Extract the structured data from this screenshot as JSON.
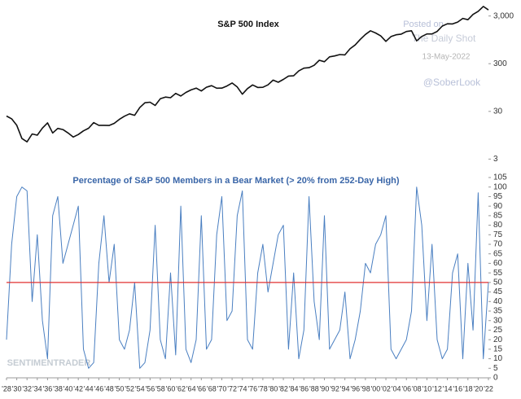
{
  "chart_data": [
    {
      "type": "line",
      "title": "S&P 500 Index",
      "log_scale": true,
      "x": [
        1928,
        1929,
        1930,
        1931,
        1932,
        1933,
        1934,
        1935,
        1936,
        1937,
        1938,
        1939,
        1940,
        1941,
        1942,
        1943,
        1944,
        1945,
        1946,
        1947,
        1948,
        1949,
        1950,
        1951,
        1952,
        1953,
        1954,
        1955,
        1956,
        1957,
        1958,
        1959,
        1960,
        1961,
        1962,
        1963,
        1964,
        1965,
        1966,
        1967,
        1968,
        1969,
        1970,
        1971,
        1972,
        1973,
        1974,
        1975,
        1976,
        1977,
        1978,
        1979,
        1980,
        1981,
        1982,
        1983,
        1984,
        1985,
        1986,
        1987,
        1988,
        1989,
        1990,
        1991,
        1992,
        1993,
        1994,
        1995,
        1996,
        1997,
        1998,
        1999,
        2000,
        2001,
        2002,
        2003,
        2004,
        2005,
        2006,
        2007,
        2008,
        2009,
        2010,
        2011,
        2012,
        2013,
        2014,
        2015,
        2016,
        2017,
        2018,
        2019,
        2020,
        2021,
        2022
      ],
      "series": [
        {
          "name": "S&P 500 Index",
          "color": "#111111",
          "values": [
            24,
            21,
            15.3,
            8.1,
            6.9,
            10.1,
            9.5,
            13.4,
            17.2,
            10.6,
            13.2,
            12.5,
            10.6,
            8.7,
            9.8,
            11.7,
            13.3,
            17.4,
            15.3,
            15.3,
            15.2,
            16.8,
            20.4,
            23.8,
            26.6,
            24.8,
            36,
            45.5,
            46.7,
            39.9,
            55.2,
            59.9,
            58.1,
            71.6,
            63.1,
            75,
            84.8,
            92.4,
            80.3,
            96.5,
            103.9,
            92.1,
            92.2,
            102.1,
            118.1,
            97.6,
            68.6,
            90.2,
            107.5,
            95.1,
            96.1,
            107.9,
            135.8,
            122.6,
            140.6,
            164.9,
            167.2,
            211.3,
            242.2,
            247.1,
            277.7,
            353.4,
            330.2,
            417.1,
            435.7,
            466.5,
            459.3,
            615.9,
            740.7,
            970.4,
            1229,
            1469,
            1320,
            1148,
            880,
            1112,
            1212,
            1248,
            1418,
            1468,
            903,
            1115,
            1258,
            1258,
            1426,
            1848,
            2059,
            2044,
            2239,
            2674,
            2507,
            3231,
            3756,
            4766,
            4023
          ]
        }
      ],
      "xlim": [
        1928,
        2022
      ],
      "ylim": [
        2.5,
        6000
      ],
      "yticks": [
        3,
        30,
        300,
        {
          "value": 3000,
          "label": "3,000"
        }
      ],
      "annotations": [
        "Posted on",
        "The Daily Shot",
        "13-May-2022",
        "@SoberLook"
      ]
    },
    {
      "type": "line",
      "title": "Percentage of S&P 500 Members in a Bear Market (> 20% from 252-Day High)",
      "x": [
        1928,
        1929,
        1930,
        1931,
        1932,
        1933,
        1934,
        1935,
        1936,
        1937,
        1938,
        1939,
        1940,
        1941,
        1942,
        1943,
        1944,
        1945,
        1946,
        1947,
        1948,
        1949,
        1950,
        1951,
        1952,
        1953,
        1954,
        1955,
        1956,
        1957,
        1958,
        1959,
        1960,
        1961,
        1962,
        1963,
        1964,
        1965,
        1966,
        1967,
        1968,
        1969,
        1970,
        1971,
        1972,
        1973,
        1974,
        1975,
        1976,
        1977,
        1978,
        1979,
        1980,
        1981,
        1982,
        1983,
        1984,
        1985,
        1986,
        1987,
        1988,
        1989,
        1990,
        1991,
        1992,
        1993,
        1994,
        1995,
        1996,
        1997,
        1998,
        1999,
        2000,
        2001,
        2002,
        2003,
        2004,
        2005,
        2006,
        2007,
        2008,
        2009,
        2010,
        2011,
        2012,
        2013,
        2014,
        2015,
        2016,
        2017,
        2018,
        2019,
        2020,
        2021,
        2022
      ],
      "series": [
        {
          "name": "Percentage of S&P 500 Members in a Bear Market",
          "color": "#4a7fc1",
          "values": [
            20,
            70,
            95,
            100,
            98,
            40,
            75,
            30,
            10,
            85,
            95,
            60,
            70,
            80,
            90,
            15,
            5,
            8,
            60,
            85,
            50,
            70,
            20,
            15,
            25,
            50,
            5,
            8,
            25,
            80,
            20,
            10,
            55,
            12,
            90,
            15,
            8,
            20,
            85,
            15,
            20,
            75,
            95,
            30,
            35,
            85,
            98,
            20,
            15,
            55,
            70,
            45,
            60,
            75,
            80,
            15,
            55,
            10,
            25,
            95,
            40,
            20,
            85,
            15,
            20,
            25,
            45,
            10,
            20,
            35,
            60,
            55,
            70,
            75,
            85,
            15,
            10,
            15,
            20,
            35,
            100,
            80,
            30,
            70,
            20,
            10,
            15,
            55,
            65,
            10,
            60,
            25,
            97,
            10,
            50
          ]
        }
      ],
      "hline": 50,
      "hline_color": "#e03030",
      "xlim": [
        1928,
        2022
      ],
      "ylim": [
        0,
        105
      ],
      "yticks": [
        0,
        5,
        10,
        15,
        20,
        25,
        30,
        35,
        40,
        45,
        50,
        55,
        60,
        65,
        70,
        75,
        80,
        85,
        90,
        95,
        100,
        105
      ],
      "xticks": [
        {
          "value": 1928,
          "label": "'28"
        },
        {
          "value": 1930,
          "label": "'30"
        },
        {
          "value": 1932,
          "label": "'32"
        },
        {
          "value": 1934,
          "label": "'34"
        },
        {
          "value": 1936,
          "label": "'36"
        },
        {
          "value": 1938,
          "label": "'38"
        },
        {
          "value": 1940,
          "label": "'40"
        },
        {
          "value": 1942,
          "label": "'42"
        },
        {
          "value": 1944,
          "label": "'44"
        },
        {
          "value": 1946,
          "label": "'46"
        },
        {
          "value": 1948,
          "label": "'48"
        },
        {
          "value": 1950,
          "label": "'50"
        },
        {
          "value": 1952,
          "label": "'52"
        },
        {
          "value": 1954,
          "label": "'54"
        },
        {
          "value": 1956,
          "label": "'56"
        },
        {
          "value": 1958,
          "label": "'58"
        },
        {
          "value": 1960,
          "label": "'60"
        },
        {
          "value": 1962,
          "label": "'62"
        },
        {
          "value": 1964,
          "label": "'64"
        },
        {
          "value": 1966,
          "label": "'66"
        },
        {
          "value": 1968,
          "label": "'68"
        },
        {
          "value": 1970,
          "label": "'70"
        },
        {
          "value": 1972,
          "label": "'72"
        },
        {
          "value": 1974,
          "label": "'74"
        },
        {
          "value": 1976,
          "label": "'76"
        },
        {
          "value": 1978,
          "label": "'78"
        },
        {
          "value": 1980,
          "label": "'80"
        },
        {
          "value": 1982,
          "label": "'82"
        },
        {
          "value": 1984,
          "label": "'84"
        },
        {
          "value": 1986,
          "label": "'86"
        },
        {
          "value": 1988,
          "label": "'88"
        },
        {
          "value": 1990,
          "label": "'90"
        },
        {
          "value": 1992,
          "label": "'92"
        },
        {
          "value": 1994,
          "label": "'94"
        },
        {
          "value": 1996,
          "label": "'96"
        },
        {
          "value": 1998,
          "label": "'98"
        },
        {
          "value": 2000,
          "label": "'00"
        },
        {
          "value": 2002,
          "label": "'02"
        },
        {
          "value": 2004,
          "label": "'04"
        },
        {
          "value": 2006,
          "label": "'06"
        },
        {
          "value": 2008,
          "label": "'08"
        },
        {
          "value": 2010,
          "label": "'10"
        },
        {
          "value": 2012,
          "label": "'12"
        },
        {
          "value": 2014,
          "label": "'14"
        },
        {
          "value": 2016,
          "label": "'16"
        },
        {
          "value": 2018,
          "label": "'18"
        },
        {
          "value": 2020,
          "label": "'20"
        },
        {
          "value": 2022,
          "label": "'22"
        }
      ],
      "annotations": [
        "SENTIMENTRADER"
      ]
    }
  ]
}
